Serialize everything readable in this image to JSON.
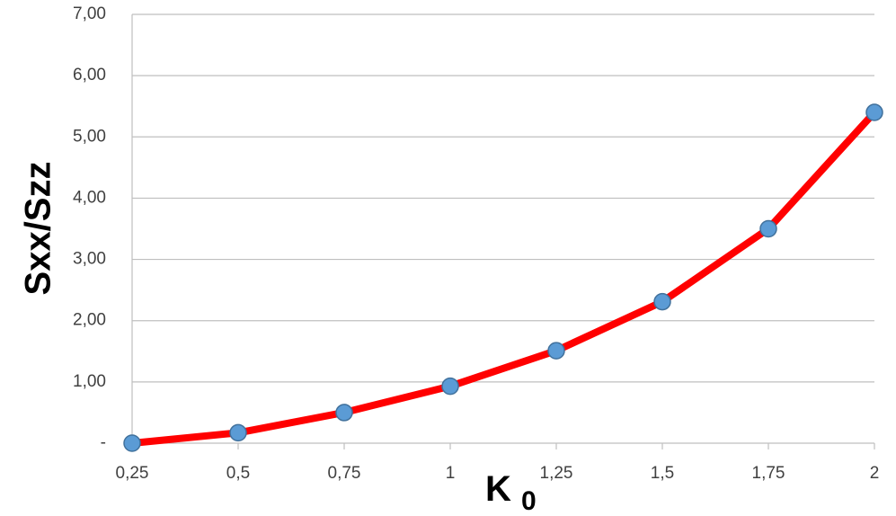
{
  "chart_data": {
    "type": "line",
    "title": "",
    "xlabel": "K",
    "xlabel_subscript": "0",
    "ylabel": "Sxx/Szz",
    "x": [
      "0,25",
      "0,5",
      "0,75",
      "1",
      "1,25",
      "1,5",
      "1,75",
      "2"
    ],
    "series": [
      {
        "values": [
          0.0,
          0.17,
          0.5,
          0.93,
          1.51,
          2.31,
          3.5,
          5.4
        ]
      }
    ],
    "ylim": [
      0,
      7
    ],
    "y_ticks": [
      "-",
      "1,00",
      "2,00",
      "3,00",
      "4,00",
      "5,00",
      "6,00",
      "7,00"
    ],
    "grid": true,
    "legend": "none",
    "colors": {
      "line": "#ff0000",
      "marker_fill": "#5b9bd5",
      "marker_stroke": "#41719c",
      "grid": "#bfbfbf"
    }
  }
}
